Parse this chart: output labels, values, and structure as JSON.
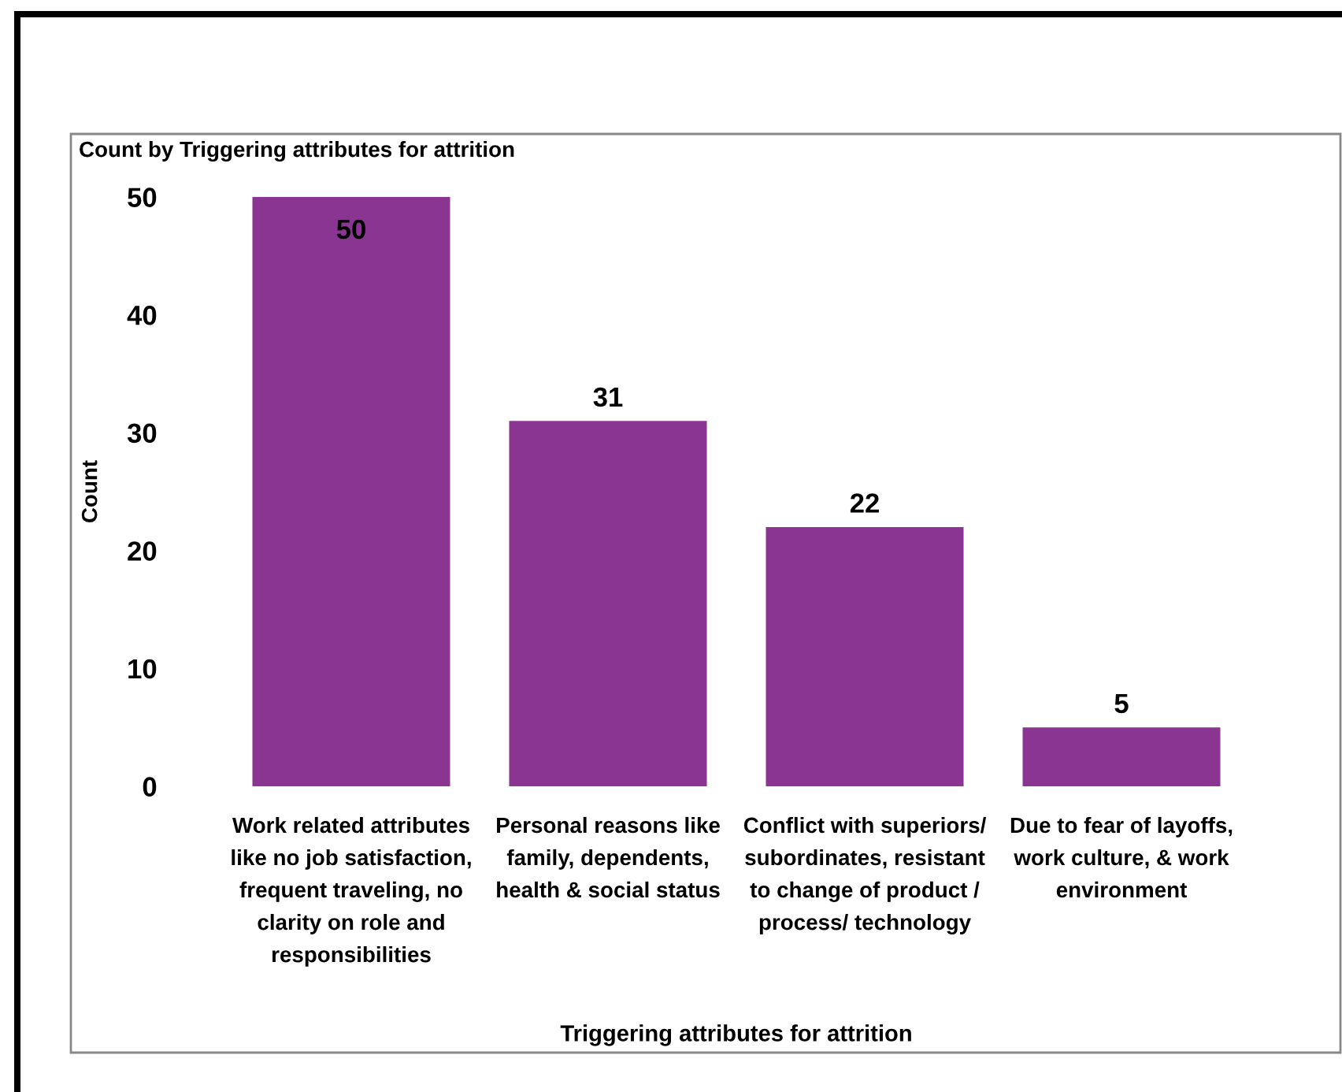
{
  "chart_data": {
    "type": "bar",
    "title": "Count by Triggering attributes for attrition",
    "categories": [
      "Work related attributes\nlike no job satisfaction,\nfrequent traveling, no\nclarity on role and\nresponsibilities",
      "Personal reasons like\nfamily, dependents,\nhealth & social status",
      "Conflict with superiors/\nsubordinates, resistant\nto change of product /\nprocess/ technology",
      "Due to fear of layoffs,\nwork culture, & work\nenvironment"
    ],
    "values": [
      50,
      31,
      22,
      5
    ],
    "color": "#8b3593",
    "xlabel": "Triggering attributes for attrition",
    "ylabel": "Count",
    "ylim": [
      0,
      50
    ],
    "yticks": [
      0,
      10,
      20,
      30,
      40,
      50
    ],
    "grid": false,
    "data_labels": true
  }
}
